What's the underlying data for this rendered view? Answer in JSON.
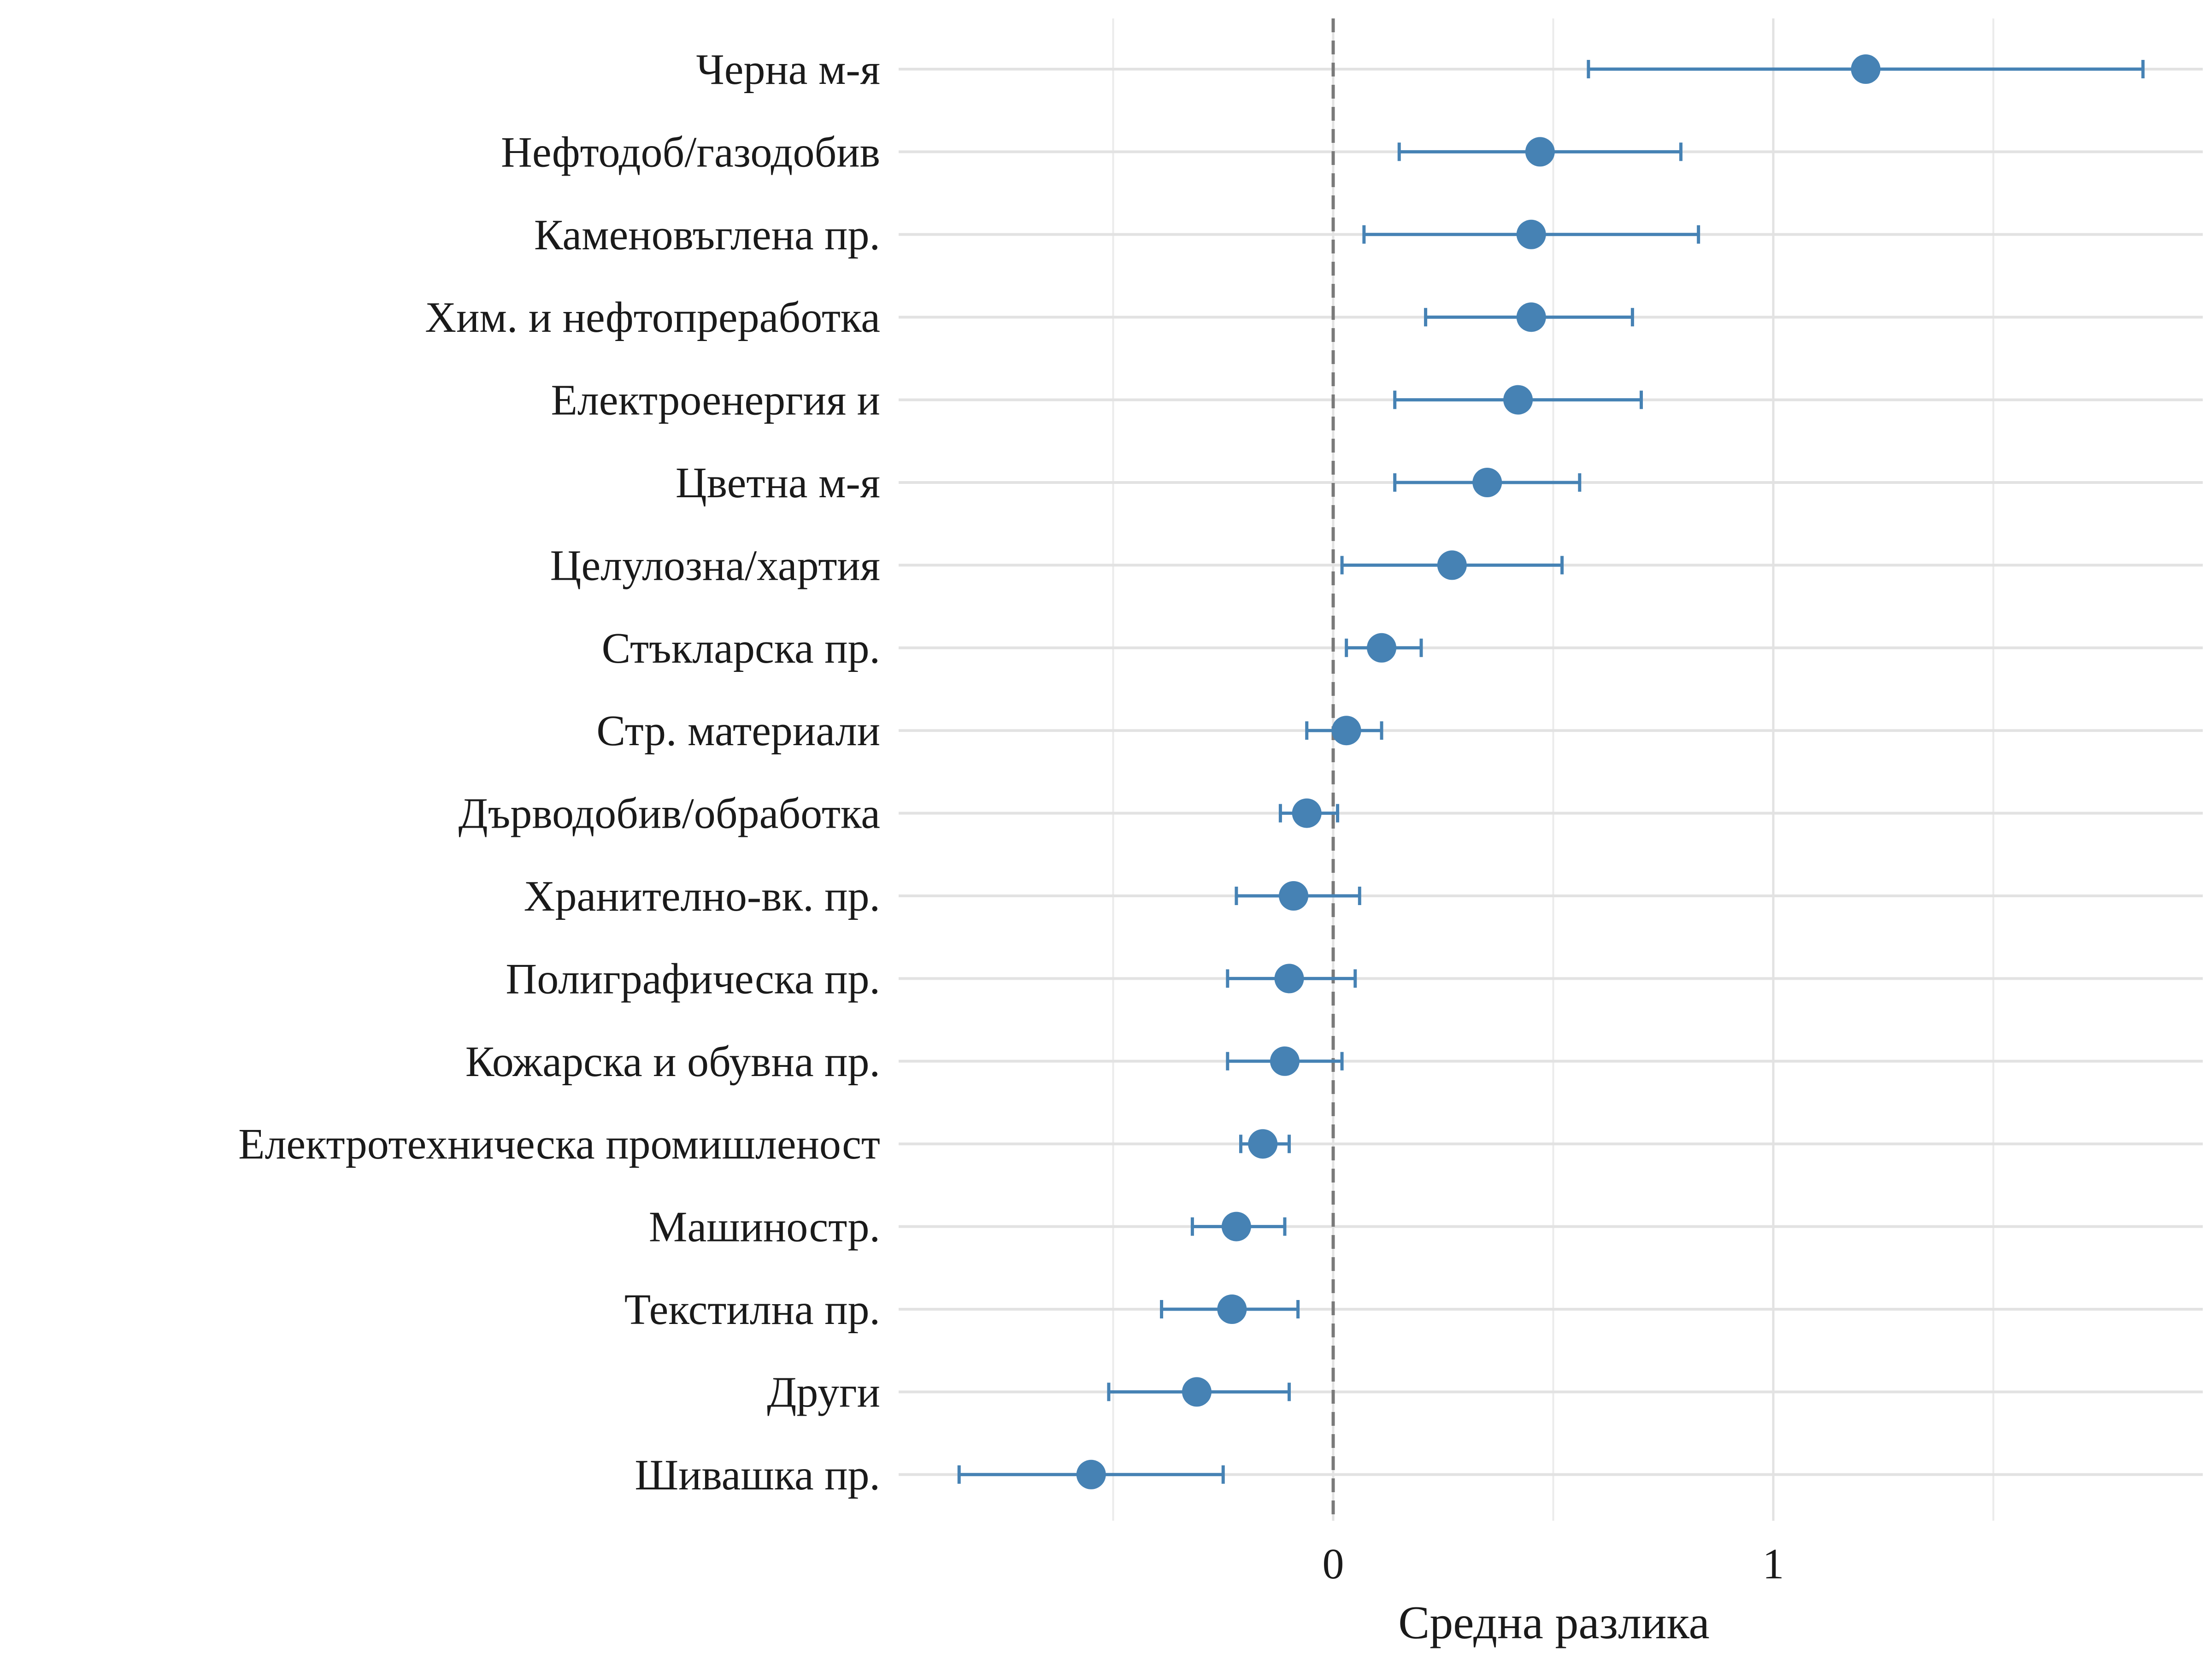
{
  "chart_data": {
    "type": "dot-errorbar",
    "title": "",
    "xlabel": "Средна разлика",
    "ylabel": "",
    "xlim": [
      -1.0,
      2.0
    ],
    "xticks": [
      0,
      1
    ],
    "x_minor_grid": [
      -0.5,
      0.5,
      1.5
    ],
    "reference_line": 0,
    "grid": true,
    "series_color": "#4682B4",
    "categories": [
      "Черна м-я",
      "Нефтодоб/газодобив",
      "Каменовъглена пр.",
      "Хим. и нефтопреработка",
      "Електроенергия и ",
      "Цветна м-я",
      "Целулозна/хартия",
      "Стъкларска пр.",
      "Стр. материали",
      "Дърводобив/обработка",
      "Хранително-вк. пр.",
      "Полиграфическа пр.",
      "Кожарска и обувна пр.",
      "Електротехническа промишленост",
      "Машиностр.",
      "Текстилна пр.",
      "Други",
      "Шивашка пр."
    ],
    "values": [
      1.21,
      0.47,
      0.45,
      0.45,
      0.42,
      0.35,
      0.27,
      0.11,
      0.03,
      -0.06,
      -0.09,
      -0.1,
      -0.11,
      -0.16,
      -0.22,
      -0.23,
      -0.31,
      -0.55
    ],
    "lower": [
      0.58,
      0.15,
      0.07,
      0.21,
      0.14,
      0.14,
      0.02,
      0.03,
      -0.06,
      -0.12,
      -0.22,
      -0.24,
      -0.24,
      -0.21,
      -0.32,
      -0.39,
      -0.51,
      -0.85
    ],
    "upper": [
      1.84,
      0.79,
      0.83,
      0.68,
      0.7,
      0.56,
      0.52,
      0.2,
      0.11,
      0.01,
      0.06,
      0.05,
      0.02,
      -0.1,
      -0.11,
      -0.08,
      -0.1,
      -0.25
    ]
  }
}
